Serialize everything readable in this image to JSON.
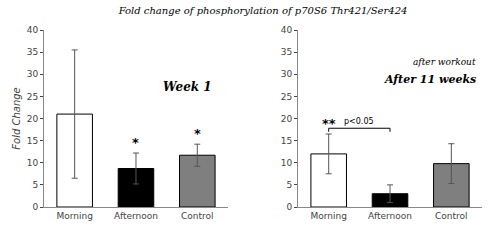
{
  "chart_data": [
    {
      "type": "bar",
      "title": "Fold change of phosphorylation of p70S6 Thr421/Ser424",
      "ylabel": "Fold Change",
      "categories": [
        "Morning",
        "Afternoon",
        "Control"
      ],
      "values": [
        21.0,
        8.7,
        11.7
      ],
      "errors_up": [
        14.5,
        3.5,
        2.5
      ],
      "errors_dn": [
        14.5,
        3.5,
        2.5
      ],
      "colors": [
        "white",
        "black",
        "#7f7f7f"
      ],
      "stars": [
        null,
        "*",
        "*"
      ],
      "annotations": [
        "Week 1"
      ],
      "ylim": [
        0,
        40
      ],
      "yticks": [
        0,
        5,
        10,
        15,
        20,
        25,
        30,
        35,
        40
      ],
      "grid": false
    },
    {
      "type": "bar",
      "categories": [
        "Morning",
        "Afternoon",
        "Control"
      ],
      "values": [
        12.0,
        3.0,
        9.8
      ],
      "errors_up": [
        4.5,
        2.0,
        4.5
      ],
      "errors_dn": [
        4.5,
        2.0,
        4.5
      ],
      "colors": [
        "white",
        "black",
        "#7f7f7f"
      ],
      "stars": [
        "**",
        null,
        null
      ],
      "annotations": [
        "after workout",
        "After 11 weeks"
      ],
      "bracket": {
        "from": "Morning",
        "to": "Afternoon",
        "y": 17.0,
        "height": 0.8,
        "label": "p<0.05"
      },
      "ylim": [
        0,
        40
      ],
      "yticks": [
        0,
        5,
        10,
        15,
        20,
        25,
        30,
        35,
        40
      ],
      "grid": false
    }
  ]
}
